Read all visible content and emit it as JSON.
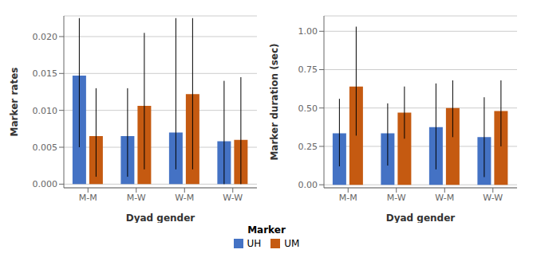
{
  "chart_data": [
    {
      "type": "bar",
      "categories": [
        "M-M",
        "M-W",
        "W-M",
        "W-W"
      ],
      "series": [
        {
          "name": "UH",
          "color": "#4472C4",
          "values": [
            0.0147,
            0.0065,
            0.007,
            0.0058
          ],
          "err_high": [
            0.0225,
            0.013,
            0.0225,
            0.014
          ],
          "err_low": [
            0.005,
            0.001,
            0.002,
            0.0
          ]
        },
        {
          "name": "UM",
          "color": "#C55A11",
          "values": [
            0.0065,
            0.0106,
            0.0122,
            0.006
          ],
          "err_high": [
            0.013,
            0.0205,
            0.0225,
            0.0145
          ],
          "err_low": [
            0.001,
            0.002,
            0.002,
            0.0
          ]
        }
      ],
      "xlabel": "Dyad gender",
      "ylabel": "Marker rates",
      "ylim": [
        -0.0005,
        0.0228
      ],
      "yticks": [
        {
          "value": 0,
          "label": "0.000"
        },
        0.005,
        {
          "value": 0.01,
          "label": "0.010"
        },
        0.015,
        {
          "value": 0.02,
          "label": "0.020"
        }
      ],
      "grid": true,
      "legend": "bottom",
      "legend_title": "Marker"
    },
    {
      "type": "bar",
      "categories": [
        "M-M",
        "M-W",
        "W-M",
        "W-W"
      ],
      "series": [
        {
          "name": "UH",
          "color": "#4472C4",
          "values": [
            0.335,
            0.335,
            0.375,
            0.31
          ],
          "err_high": [
            0.56,
            0.53,
            0.66,
            0.57
          ],
          "err_low": [
            0.12,
            0.125,
            0.1,
            0.05
          ]
        },
        {
          "name": "UM",
          "color": "#C55A11",
          "values": [
            0.64,
            0.47,
            0.5,
            0.48
          ],
          "err_high": [
            1.03,
            0.64,
            0.68,
            0.68
          ],
          "err_low": [
            0.32,
            0.3,
            0.31,
            0.25
          ]
        }
      ],
      "xlabel": "Dyad gender",
      "ylabel": "Marker duration (sec)",
      "ylim": [
        -0.02,
        1.1
      ],
      "yticks": [
        {
          "value": 0,
          "label": "0.00"
        },
        0.25,
        {
          "value": 0.5,
          "label": "0.50"
        },
        {
          "value": 0.75,
          "label": "0.75"
        },
        {
          "value": 1,
          "label": "1.00"
        }
      ],
      "grid": true
    }
  ]
}
